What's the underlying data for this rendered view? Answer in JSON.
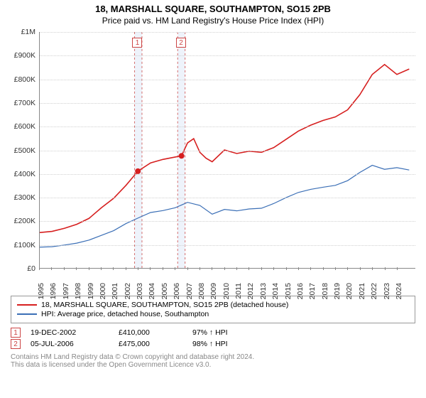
{
  "title": {
    "main": "18, MARSHALL SQUARE, SOUTHAMPTON, SO15 2PB",
    "sub": "Price paid vs. HM Land Registry's House Price Index (HPI)"
  },
  "chart": {
    "type": "line",
    "background_color": "#ffffff",
    "grid_color": "#d0d0d0",
    "axis_color": "#888888",
    "label_fontsize": 10.5,
    "ylim": [
      0,
      1000000
    ],
    "ytick_step": 100000,
    "ytick_labels": [
      "£0",
      "£100K",
      "£200K",
      "£300K",
      "£400K",
      "£500K",
      "£600K",
      "£700K",
      "£800K",
      "£900K",
      "£1M"
    ],
    "xlim": [
      1995,
      2025.5
    ],
    "xticks": [
      1995,
      1996,
      1997,
      1998,
      1999,
      2000,
      2001,
      2002,
      2003,
      2004,
      2005,
      2006,
      2007,
      2008,
      2009,
      2010,
      2011,
      2012,
      2013,
      2014,
      2015,
      2016,
      2017,
      2018,
      2019,
      2020,
      2021,
      2022,
      2023,
      2024
    ],
    "series": [
      {
        "key": "property",
        "label": "18, MARSHALL SQUARE, SOUTHAMPTON, SO15 2PB (detached house)",
        "color": "#d61f1f",
        "line_width": 1.6,
        "x": [
          1995,
          1996,
          1997,
          1998,
          1999,
          2000,
          2001,
          2002,
          2002.97,
          2004,
          2005,
          2006,
          2006.51,
          2007,
          2007.5,
          2008,
          2008.5,
          2009,
          2010,
          2011,
          2012,
          2013,
          2014,
          2015,
          2016,
          2017,
          2018,
          2019,
          2020,
          2021,
          2022,
          2023,
          2024,
          2025
        ],
        "y": [
          150000,
          155000,
          168000,
          185000,
          210000,
          255000,
          295000,
          350000,
          410000,
          445000,
          460000,
          470000,
          475000,
          530000,
          548000,
          490000,
          465000,
          450000,
          500000,
          485000,
          495000,
          490000,
          510000,
          545000,
          580000,
          605000,
          625000,
          640000,
          670000,
          735000,
          820000,
          862000,
          820000,
          843000
        ]
      },
      {
        "key": "hpi",
        "label": "HPI: Average price, detached house, Southampton",
        "color": "#3b6fb6",
        "line_width": 1.2,
        "x": [
          1995,
          1996,
          1997,
          1998,
          1999,
          2000,
          2001,
          2002,
          2003,
          2004,
          2005,
          2006,
          2007,
          2008,
          2009,
          2010,
          2011,
          2012,
          2013,
          2014,
          2015,
          2016,
          2017,
          2018,
          2019,
          2020,
          2021,
          2022,
          2023,
          2024,
          2025
        ],
        "y": [
          88000,
          90000,
          97000,
          105000,
          118000,
          138000,
          158000,
          188000,
          212000,
          235000,
          243000,
          255000,
          278000,
          265000,
          228000,
          248000,
          242000,
          250000,
          253000,
          273000,
          298000,
          320000,
          333000,
          342000,
          350000,
          370000,
          405000,
          435000,
          418000,
          425000,
          415000
        ]
      }
    ],
    "sale_markers": [
      {
        "n": "1",
        "x": 2002.97,
        "y": 410000,
        "band": [
          2002.7,
          2003.3
        ]
      },
      {
        "n": "2",
        "x": 2006.51,
        "y": 475000,
        "band": [
          2006.2,
          2006.8
        ]
      }
    ],
    "marker_color": "#d61f1f",
    "marker_box_color": "#cc4444",
    "band_fill": "#eef3fb",
    "band_border": "#d36b6b"
  },
  "legend": {
    "rows": [
      {
        "color": "#d61f1f",
        "label": "18, MARSHALL SQUARE, SOUTHAMPTON, SO15 2PB (detached house)"
      },
      {
        "color": "#3b6fb6",
        "label": "HPI: Average price, detached house, Southampton"
      }
    ]
  },
  "sales": [
    {
      "n": "1",
      "date": "19-DEC-2002",
      "price": "£410,000",
      "ratio": "97% ↑ HPI"
    },
    {
      "n": "2",
      "date": "05-JUL-2006",
      "price": "£475,000",
      "ratio": "98% ↑ HPI"
    }
  ],
  "footnote": {
    "line1": "Contains HM Land Registry data © Crown copyright and database right 2024.",
    "line2": "This data is licensed under the Open Government Licence v3.0."
  }
}
